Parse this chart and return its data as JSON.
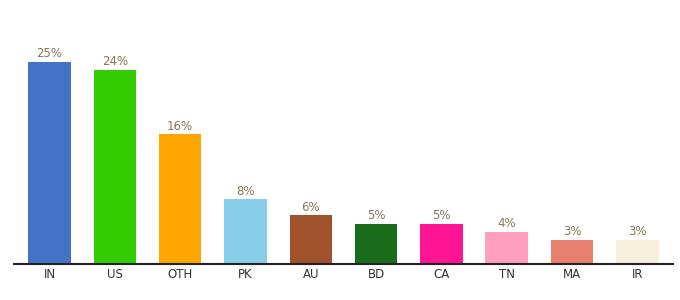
{
  "categories": [
    "IN",
    "US",
    "OTH",
    "PK",
    "AU",
    "BD",
    "CA",
    "TN",
    "MA",
    "IR"
  ],
  "values": [
    25,
    24,
    16,
    8,
    6,
    5,
    5,
    4,
    3,
    3
  ],
  "bar_colors": [
    "#4472C4",
    "#33CC00",
    "#FFA500",
    "#87CEEB",
    "#A0522D",
    "#1A6B1A",
    "#FF1493",
    "#FF9EBF",
    "#E88070",
    "#F5F0DC"
  ],
  "labels": [
    "25%",
    "24%",
    "16%",
    "8%",
    "6%",
    "5%",
    "5%",
    "4%",
    "3%",
    "3%"
  ],
  "ylim": [
    0,
    30
  ],
  "background_color": "#ffffff",
  "label_color": "#8B7355",
  "label_fontsize": 8.5,
  "tick_fontsize": 8.5,
  "bar_width": 0.65
}
